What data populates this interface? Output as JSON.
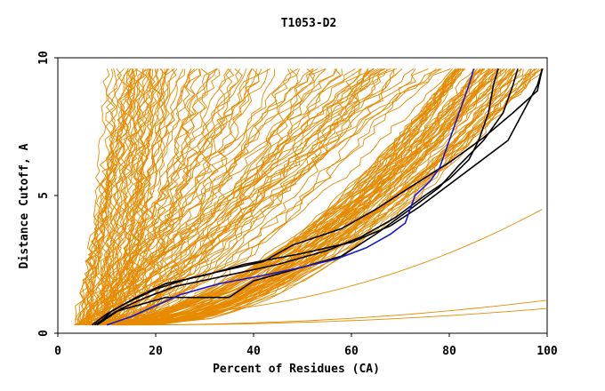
{
  "chart_data": {
    "type": "line",
    "title": "T1053-D2",
    "xlabel": "Percent of Residues (CA)",
    "ylabel": "Distance Cutoff, A",
    "xlim": [
      0,
      100
    ],
    "ylim": [
      0,
      10
    ],
    "x_ticks": [
      0,
      20,
      40,
      60,
      80,
      100
    ],
    "y_ticks": [
      0,
      5,
      10
    ],
    "grid": false,
    "legend": "none",
    "colors": {
      "background_models": "#e68a00",
      "highlight_black": "#000000",
      "highlight_blue": "#1a1acc"
    },
    "highlight_series": [
      {
        "color": "#000000",
        "points": [
          [
            7.5,
            0.3
          ],
          [
            12,
            0.8
          ],
          [
            22,
            1.3
          ],
          [
            35,
            1.3
          ],
          [
            40,
            1.9
          ],
          [
            50,
            2.4
          ],
          [
            58,
            2.8
          ],
          [
            65,
            3.6
          ],
          [
            72,
            4.5
          ],
          [
            78,
            5.3
          ],
          [
            82,
            6.1
          ],
          [
            87,
            7.0
          ],
          [
            91,
            8.0
          ],
          [
            93,
            9.0
          ],
          [
            94,
            9.6
          ]
        ]
      },
      {
        "color": "#000000",
        "points": [
          [
            8,
            0.3
          ],
          [
            13,
            0.9
          ],
          [
            18,
            1.3
          ],
          [
            24,
            1.7
          ],
          [
            32,
            2.0
          ],
          [
            45,
            2.5
          ],
          [
            55,
            3.0
          ],
          [
            62,
            3.5
          ],
          [
            69,
            4.2
          ],
          [
            75,
            5.0
          ],
          [
            80,
            5.6
          ],
          [
            84,
            6.3
          ],
          [
            86,
            7.0
          ],
          [
            88,
            8.0
          ],
          [
            89,
            9.0
          ],
          [
            90,
            9.6
          ]
        ]
      },
      {
        "color": "#000000",
        "points": [
          [
            8,
            0.3
          ],
          [
            11,
            0.8
          ],
          [
            16,
            1.3
          ],
          [
            22,
            1.8
          ],
          [
            30,
            2.1
          ],
          [
            38,
            2.5
          ],
          [
            50,
            2.9
          ],
          [
            60,
            3.3
          ],
          [
            68,
            3.9
          ],
          [
            74,
            4.6
          ],
          [
            80,
            5.4
          ],
          [
            86,
            6.2
          ],
          [
            92,
            7.0
          ],
          [
            95,
            8.0
          ],
          [
            98,
            9.0
          ],
          [
            99,
            9.6
          ]
        ]
      },
      {
        "color": "#000000",
        "points": [
          [
            7,
            0.3
          ],
          [
            10,
            0.7
          ],
          [
            14,
            1.1
          ],
          [
            20,
            1.6
          ],
          [
            27,
            2.0
          ],
          [
            37,
            2.4
          ],
          [
            42,
            2.6
          ],
          [
            48,
            3.2
          ],
          [
            58,
            3.8
          ],
          [
            65,
            4.5
          ],
          [
            72,
            5.3
          ],
          [
            80,
            6.2
          ],
          [
            87,
            7.1
          ],
          [
            93,
            8.0
          ],
          [
            98,
            8.8
          ],
          [
            99,
            9.6
          ]
        ]
      },
      {
        "color": "#1a1acc",
        "points": [
          [
            10,
            0.3
          ],
          [
            15,
            0.6
          ],
          [
            20,
            1.0
          ],
          [
            25,
            1.4
          ],
          [
            33,
            1.8
          ],
          [
            42,
            2.1
          ],
          [
            50,
            2.4
          ],
          [
            57,
            2.7
          ],
          [
            63,
            3.1
          ],
          [
            68,
            3.6
          ],
          [
            71,
            4.0
          ],
          [
            72,
            4.5
          ],
          [
            73,
            5.0
          ],
          [
            76,
            5.5
          ],
          [
            78,
            6.0
          ],
          [
            79,
            6.5
          ],
          [
            80,
            7.0
          ],
          [
            81,
            7.5
          ],
          [
            82,
            8.0
          ],
          [
            83,
            8.5
          ],
          [
            84,
            9.0
          ],
          [
            85,
            9.6
          ]
        ]
      }
    ]
  }
}
